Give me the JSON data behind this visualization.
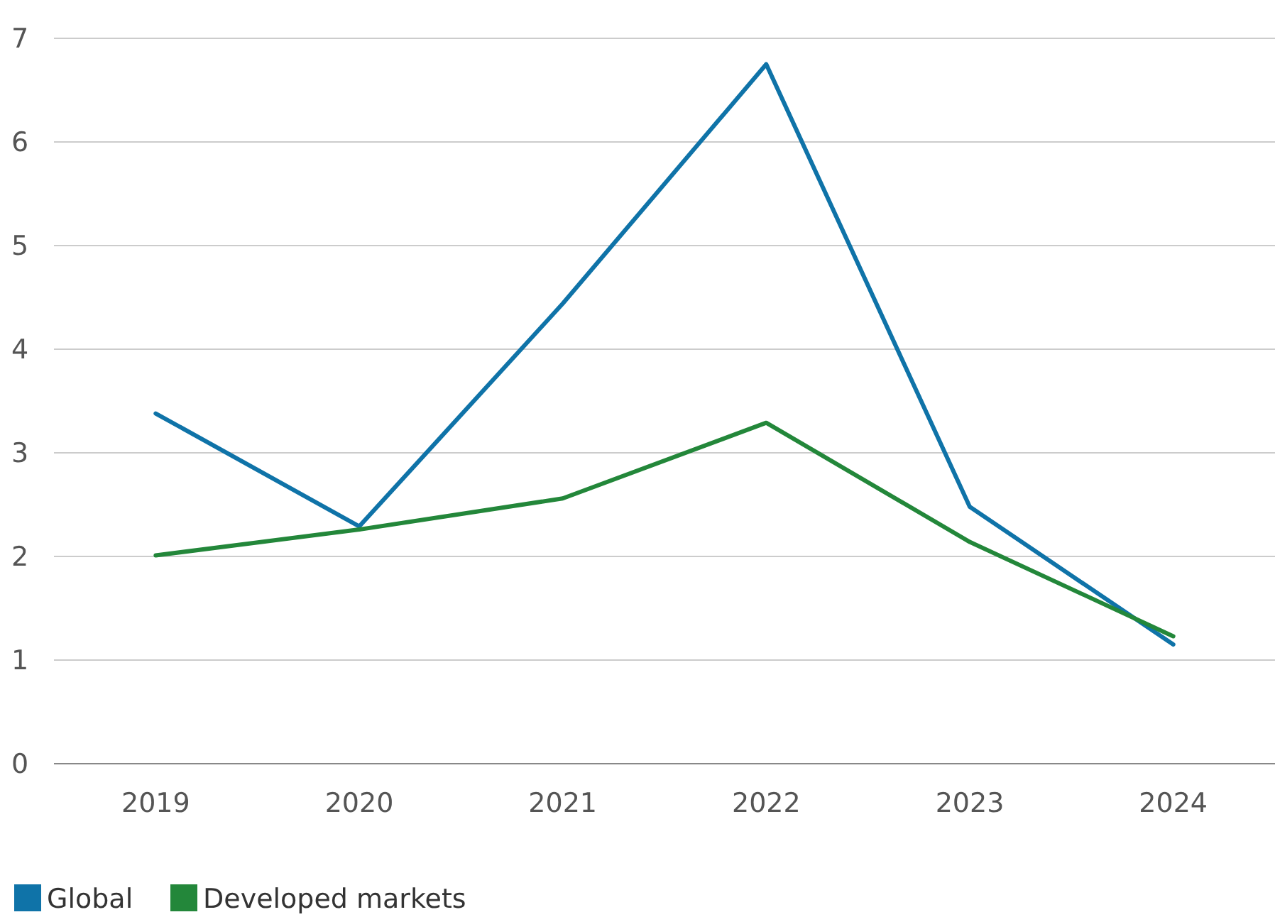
{
  "chart_data": {
    "type": "line",
    "categories": [
      "2019",
      "2020",
      "2021",
      "2022",
      "2023",
      "2024"
    ],
    "series": [
      {
        "name": "Global",
        "color": "#0f73a8",
        "values": [
          3.38,
          2.29,
          4.44,
          6.75,
          2.48,
          1.15
        ]
      },
      {
        "name": "Developed markets",
        "color": "#23873a",
        "values": [
          2.01,
          2.26,
          2.56,
          3.29,
          2.14,
          1.23
        ]
      }
    ],
    "ylim": [
      0,
      7
    ],
    "yticks": [
      0,
      1,
      2,
      3,
      4,
      5,
      6,
      7
    ],
    "grid": "y",
    "legend": "bottom left",
    "marker": "none",
    "line_style": "solid"
  }
}
